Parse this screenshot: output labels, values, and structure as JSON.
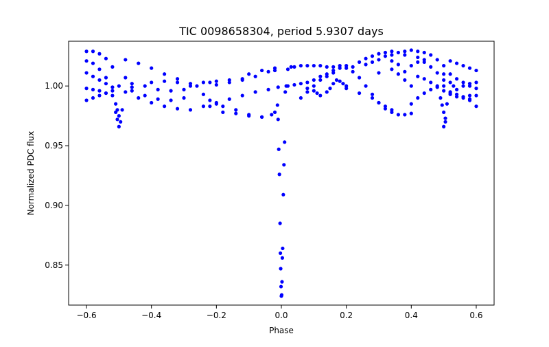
{
  "chart_data": {
    "type": "scatter",
    "title": "TIC 0098658304, period 5.9307 days",
    "xlabel": "Phase",
    "ylabel": "Normalized PDC flux",
    "xlim": [
      -0.655,
      0.655
    ],
    "ylim": [
      0.8165,
      1.0375
    ],
    "xticks": [
      -0.6,
      -0.4,
      -0.2,
      0.0,
      0.2,
      0.4,
      0.6
    ],
    "xtick_labels": [
      "−0.6",
      "−0.4",
      "−0.2",
      "0.0",
      "0.2",
      "0.4",
      "0.6"
    ],
    "yticks": [
      0.85,
      0.9,
      0.95,
      1.0
    ],
    "ytick_labels": [
      "0.85",
      "0.90",
      "0.95",
      "1.00"
    ],
    "grid": false,
    "legend": "none",
    "marker_color": "#0000ff",
    "series": [
      {
        "points": [
          [
            -0.6,
            1.029
          ],
          [
            -0.58,
            1.029
          ],
          [
            -0.56,
            1.027
          ],
          [
            -0.54,
            1.023
          ],
          [
            -0.52,
            1.016
          ],
          [
            -0.6,
            1.021
          ],
          [
            -0.58,
            1.019
          ],
          [
            -0.56,
            1.014
          ],
          [
            -0.54,
            1.007
          ],
          [
            -0.6,
            1.011
          ],
          [
            -0.58,
            1.008
          ],
          [
            -0.56,
            1.005
          ],
          [
            -0.54,
            1.002
          ],
          [
            -0.52,
            0.999
          ],
          [
            -0.6,
            0.998
          ],
          [
            -0.58,
            0.997
          ],
          [
            -0.56,
            0.996
          ],
          [
            -0.54,
            0.994
          ],
          [
            -0.52,
            0.992
          ],
          [
            -0.6,
            0.988
          ],
          [
            -0.58,
            0.99
          ],
          [
            -0.56,
            0.992
          ],
          [
            -0.54,
            0.994
          ],
          [
            -0.52,
            0.996
          ],
          [
            -0.51,
            0.985
          ],
          [
            -0.505,
            0.98
          ],
          [
            -0.5,
            0.975
          ],
          [
            -0.495,
            0.97
          ],
          [
            -0.5,
            0.966
          ],
          [
            -0.49,
            0.98
          ],
          [
            -0.505,
            0.972
          ],
          [
            -0.51,
            0.978
          ],
          [
            -0.5,
            1.0
          ],
          [
            -0.48,
            1.007
          ],
          [
            -0.46,
            0.999
          ],
          [
            -0.48,
            0.995
          ],
          [
            -0.48,
            1.022
          ],
          [
            -0.44,
            1.019
          ],
          [
            -0.4,
            1.015
          ],
          [
            -0.36,
            1.01
          ],
          [
            -0.32,
            1.006
          ],
          [
            -0.28,
            1.0
          ],
          [
            -0.24,
            0.993
          ],
          [
            -0.22,
            0.988
          ],
          [
            -0.46,
            1.002
          ],
          [
            -0.42,
            1.0
          ],
          [
            -0.38,
            0.997
          ],
          [
            -0.34,
            0.996
          ],
          [
            -0.3,
            0.997
          ],
          [
            -0.26,
            1.0
          ],
          [
            -0.22,
            1.003
          ],
          [
            -0.44,
            0.99
          ],
          [
            -0.4,
            0.986
          ],
          [
            -0.36,
            0.983
          ],
          [
            -0.32,
            0.981
          ],
          [
            -0.28,
            0.98
          ],
          [
            -0.24,
            0.983
          ],
          [
            -0.2,
            0.986
          ],
          [
            -0.4,
            1.003
          ],
          [
            -0.36,
            1.004
          ],
          [
            -0.32,
            1.003
          ],
          [
            -0.28,
            1.002
          ],
          [
            -0.24,
            1.003
          ],
          [
            -0.2,
            1.004
          ],
          [
            -0.16,
            1.005
          ],
          [
            -0.12,
            1.006
          ],
          [
            -0.46,
            0.996
          ],
          [
            -0.42,
            0.992
          ],
          [
            -0.38,
            0.989
          ],
          [
            -0.34,
            0.988
          ],
          [
            -0.3,
            0.99
          ],
          [
            -0.2,
            1.001
          ],
          [
            -0.16,
            1.003
          ],
          [
            -0.12,
            1.005
          ],
          [
            -0.08,
            1.008
          ],
          [
            -0.04,
            1.012
          ],
          [
            -0.02,
            1.013
          ],
          [
            -0.22,
            0.983
          ],
          [
            -0.18,
            0.983
          ],
          [
            -0.14,
            0.98
          ],
          [
            -0.1,
            0.976
          ],
          [
            -0.06,
            0.974
          ],
          [
            -0.03,
            0.976
          ],
          [
            -0.02,
            0.978
          ],
          [
            -0.2,
            0.985
          ],
          [
            -0.16,
            0.989
          ],
          [
            -0.12,
            0.992
          ],
          [
            -0.08,
            0.995
          ],
          [
            -0.04,
            0.997
          ],
          [
            -0.01,
            0.999
          ],
          [
            -0.18,
            0.978
          ],
          [
            -0.14,
            0.977
          ],
          [
            -0.1,
            0.975
          ],
          [
            -0.06,
            0.974
          ],
          [
            -0.1,
            1.01
          ],
          [
            -0.06,
            1.013
          ],
          [
            -0.02,
            1.015
          ],
          [
            -0.012,
            0.984
          ],
          [
            -0.01,
            0.972
          ],
          [
            -0.008,
            0.947
          ],
          [
            -0.006,
            0.926
          ],
          [
            -0.004,
            0.885
          ],
          [
            -0.003,
            0.86
          ],
          [
            -0.002,
            0.847
          ],
          [
            -0.001,
            0.832
          ],
          [
            0.0,
            0.824
          ],
          [
            0.001,
            0.825
          ],
          [
            0.002,
            0.836
          ],
          [
            0.003,
            0.856
          ],
          [
            0.004,
            0.864
          ],
          [
            0.006,
            0.909
          ],
          [
            0.008,
            0.934
          ],
          [
            0.01,
            0.953
          ],
          [
            0.012,
            0.995
          ],
          [
            0.015,
            1.0
          ],
          [
            0.02,
            1.014
          ],
          [
            0.03,
            1.016
          ],
          [
            0.04,
            1.016
          ],
          [
            0.06,
            1.017
          ],
          [
            0.08,
            1.017
          ],
          [
            0.1,
            1.017
          ],
          [
            0.12,
            1.017
          ],
          [
            0.14,
            1.016
          ],
          [
            0.16,
            1.016
          ],
          [
            0.18,
            1.017
          ],
          [
            0.2,
            1.017
          ],
          [
            0.02,
            1.0
          ],
          [
            0.04,
            1.001
          ],
          [
            0.06,
            1.002
          ],
          [
            0.08,
            1.003
          ],
          [
            0.1,
            1.005
          ],
          [
            0.12,
            1.008
          ],
          [
            0.14,
            1.01
          ],
          [
            0.16,
            1.013
          ],
          [
            0.18,
            1.015
          ],
          [
            0.06,
            0.99
          ],
          [
            0.08,
            0.995
          ],
          [
            0.1,
            1.0
          ],
          [
            0.12,
            1.005
          ],
          [
            0.14,
            1.008
          ],
          [
            0.16,
            1.011
          ],
          [
            0.08,
            0.998
          ],
          [
            0.1,
            0.996
          ],
          [
            0.11,
            0.994
          ],
          [
            0.12,
            0.992
          ],
          [
            0.14,
            0.995
          ],
          [
            0.15,
            0.998
          ],
          [
            0.16,
            1.002
          ],
          [
            0.17,
            1.005
          ],
          [
            0.18,
            1.004
          ],
          [
            0.19,
            1.002
          ],
          [
            0.2,
            1.0
          ],
          [
            0.2,
            1.015
          ],
          [
            0.22,
            1.012
          ],
          [
            0.24,
            1.007
          ],
          [
            0.26,
            1.0
          ],
          [
            0.28,
            0.993
          ],
          [
            0.3,
            0.986
          ],
          [
            0.32,
            0.981
          ],
          [
            0.34,
            0.978
          ],
          [
            0.36,
            0.976
          ],
          [
            0.38,
            0.976
          ],
          [
            0.4,
            0.977
          ],
          [
            0.22,
            1.016
          ],
          [
            0.24,
            1.02
          ],
          [
            0.26,
            1.023
          ],
          [
            0.28,
            1.025
          ],
          [
            0.3,
            1.027
          ],
          [
            0.32,
            1.028
          ],
          [
            0.34,
            1.029
          ],
          [
            0.36,
            1.028
          ],
          [
            0.38,
            1.026
          ],
          [
            0.2,
            0.998
          ],
          [
            0.24,
            0.994
          ],
          [
            0.28,
            0.99
          ],
          [
            0.3,
            0.986
          ],
          [
            0.32,
            0.983
          ],
          [
            0.34,
            0.98
          ],
          [
            0.26,
            1.018
          ],
          [
            0.28,
            1.02
          ],
          [
            0.3,
            1.022
          ],
          [
            0.32,
            1.025
          ],
          [
            0.34,
            1.026
          ],
          [
            0.3,
            1.011
          ],
          [
            0.34,
            1.014
          ],
          [
            0.36,
            1.01
          ],
          [
            0.38,
            1.005
          ],
          [
            0.4,
            1.0
          ],
          [
            0.34,
            1.021
          ],
          [
            0.36,
            1.018
          ],
          [
            0.38,
            1.012
          ],
          [
            0.4,
            1.017
          ],
          [
            0.42,
            1.02
          ],
          [
            0.44,
            1.022
          ],
          [
            0.38,
            1.029
          ],
          [
            0.4,
            1.03
          ],
          [
            0.42,
            1.029
          ],
          [
            0.44,
            1.028
          ],
          [
            0.46,
            1.026
          ],
          [
            0.48,
            1.022
          ],
          [
            0.5,
            1.017
          ],
          [
            0.4,
            0.985
          ],
          [
            0.42,
            0.99
          ],
          [
            0.44,
            0.994
          ],
          [
            0.46,
            0.997
          ],
          [
            0.48,
            0.999
          ],
          [
            0.5,
            1.0
          ],
          [
            0.42,
            1.008
          ],
          [
            0.44,
            1.006
          ],
          [
            0.46,
            1.003
          ],
          [
            0.48,
            1.0
          ],
          [
            0.5,
            0.996
          ],
          [
            0.42,
            1.024
          ],
          [
            0.44,
            1.02
          ],
          [
            0.46,
            1.016
          ],
          [
            0.48,
            1.011
          ],
          [
            0.5,
            1.005
          ],
          [
            0.49,
            0.99
          ],
          [
            0.495,
            0.984
          ],
          [
            0.5,
            0.978
          ],
          [
            0.505,
            0.973
          ],
          [
            0.5,
            0.966
          ],
          [
            0.51,
            0.985
          ],
          [
            0.505,
            0.97
          ],
          [
            0.5,
            1.01
          ],
          [
            0.52,
            1.003
          ],
          [
            0.53,
            1.0
          ],
          [
            0.52,
            0.995
          ],
          [
            0.52,
            1.021
          ],
          [
            0.54,
            1.019
          ],
          [
            0.56,
            1.017
          ],
          [
            0.58,
            1.015
          ],
          [
            0.6,
            1.013
          ],
          [
            0.52,
            1.01
          ],
          [
            0.54,
            1.006
          ],
          [
            0.56,
            1.003
          ],
          [
            0.58,
            1.0
          ],
          [
            0.6,
            0.998
          ],
          [
            0.52,
            0.994
          ],
          [
            0.54,
            0.997
          ],
          [
            0.56,
            1.0
          ],
          [
            0.58,
            1.002
          ],
          [
            0.6,
            1.003
          ],
          [
            0.52,
            0.993
          ],
          [
            0.54,
            0.991
          ],
          [
            0.56,
            0.99
          ],
          [
            0.58,
            0.989
          ],
          [
            0.6,
            0.992
          ],
          [
            0.54,
            0.993
          ],
          [
            0.56,
            0.991
          ],
          [
            0.58,
            0.988
          ],
          [
            0.6,
            0.983
          ],
          [
            0.58,
            0.992
          ]
        ]
      }
    ]
  }
}
